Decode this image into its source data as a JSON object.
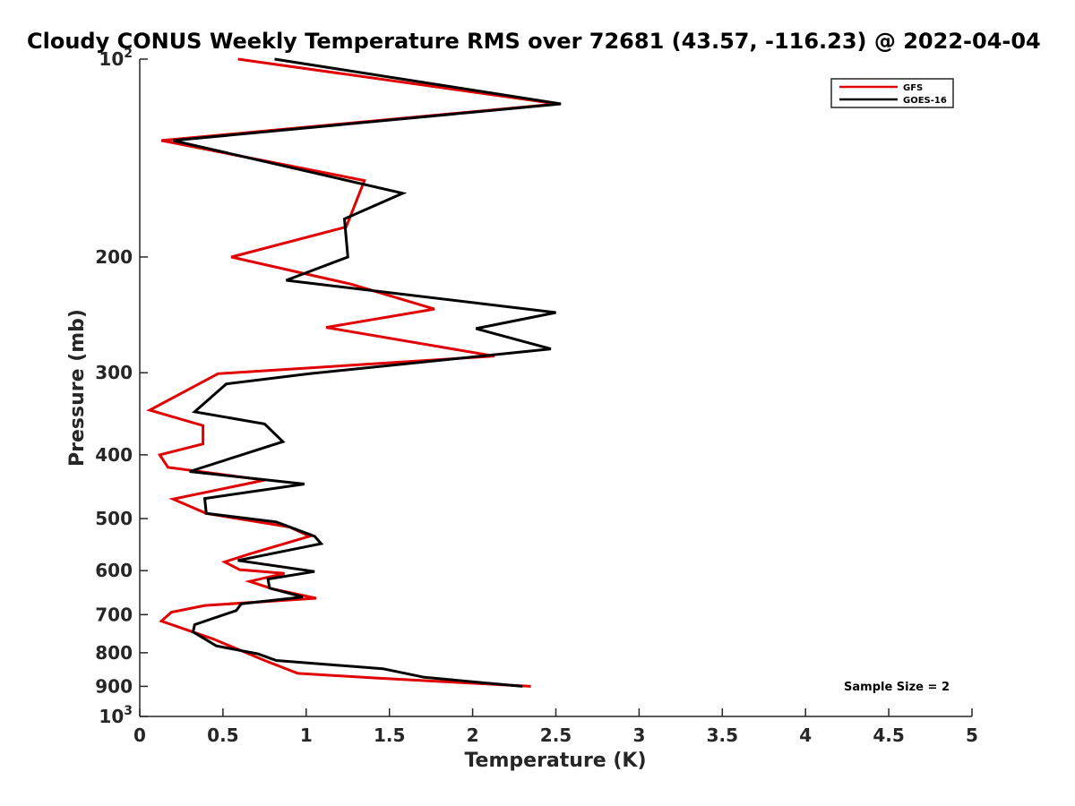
{
  "chart_data": {
    "type": "line",
    "title": "Cloudy CONUS Weekly Temperature RMS over 72681 (43.57, -116.23) @ 2022-04-04",
    "xlabel": "Temperature (K)",
    "ylabel": "Pressure (mb)",
    "xlim": [
      0,
      5
    ],
    "ylim": [
      100,
      1000
    ],
    "y_scale": "log",
    "y_reversed": true,
    "grid": false,
    "legend_position": "top-right",
    "x_ticks": [
      0,
      0.5,
      1,
      1.5,
      2,
      2.5,
      3,
      3.5,
      4,
      4.5,
      5
    ],
    "x_tick_labels": [
      "0",
      "0.5",
      "1",
      "1.5",
      "2",
      "2.5",
      "3",
      "3.5",
      "4",
      "4.5",
      "5"
    ],
    "y_ticks": [
      100,
      200,
      300,
      400,
      500,
      600,
      700,
      800,
      900,
      1000
    ],
    "y_tick_labels": [
      {
        "base": "10",
        "exp": "2"
      },
      {
        "base": "200",
        "exp": ""
      },
      {
        "base": "300",
        "exp": ""
      },
      {
        "base": "400",
        "exp": ""
      },
      {
        "base": "500",
        "exp": ""
      },
      {
        "base": "600",
        "exp": ""
      },
      {
        "base": "700",
        "exp": ""
      },
      {
        "base": "800",
        "exp": ""
      },
      {
        "base": "900",
        "exp": ""
      },
      {
        "base": "10",
        "exp": "3"
      }
    ],
    "annotation": "Sample Size = 2",
    "series": [
      {
        "name": "GFS",
        "color": "#e00000",
        "x": [
          0.59,
          2.51,
          0.13,
          1.35,
          1.24,
          0.55,
          1.27,
          1.77,
          1.12,
          2.13,
          0.47,
          0.06,
          0.38,
          0.38,
          0.12,
          0.17,
          0.75,
          0.2,
          0.4,
          0.9,
          1.02,
          0.66,
          0.51,
          0.6,
          0.87,
          0.66,
          0.8,
          1.06,
          0.39,
          0.19,
          0.13,
          0.44,
          0.75,
          0.95,
          1.42,
          2.35
        ],
        "y": [
          100,
          117,
          133,
          153,
          180,
          200,
          220,
          240,
          256,
          283,
          301,
          342,
          361,
          385,
          400,
          418,
          437,
          467,
          491,
          515,
          532,
          566,
          582,
          598,
          606,
          623,
          640,
          661,
          678,
          694,
          716,
          762,
          822,
          860,
          874,
          900
        ]
      },
      {
        "name": "GOES-16",
        "color": "#000000",
        "x": [
          0.81,
          2.53,
          0.2,
          1.58,
          1.23,
          1.25,
          0.88,
          2.5,
          2.02,
          2.47,
          1.02,
          0.52,
          0.33,
          0.75,
          0.86,
          0.3,
          0.99,
          0.39,
          0.4,
          0.82,
          1.05,
          1.09,
          0.59,
          1.05,
          0.77,
          0.78,
          0.98,
          0.61,
          0.58,
          0.33,
          0.32,
          0.46,
          0.71,
          0.82,
          1.46,
          1.71,
          2.3
        ],
        "y": [
          100,
          117,
          133,
          160,
          175,
          200,
          217,
          243,
          257,
          276,
          301,
          312,
          344,
          359,
          382,
          424,
          443,
          466,
          491,
          506,
          532,
          546,
          579,
          602,
          618,
          638,
          658,
          674,
          690,
          725,
          744,
          781,
          803,
          822,
          846,
          872,
          900
        ]
      }
    ]
  }
}
